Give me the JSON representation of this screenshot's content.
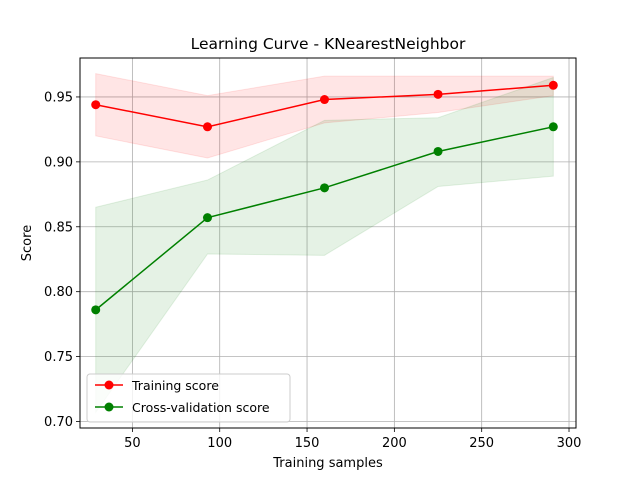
{
  "chart_data": {
    "type": "line",
    "title": "Learning Curve - KNearestNeighbor",
    "xlabel": "Training samples",
    "ylabel": "Score",
    "xlim": [
      20,
      304
    ],
    "ylim": [
      0.695,
      0.98
    ],
    "xticks": [
      50,
      100,
      150,
      200,
      250,
      300
    ],
    "yticks": [
      0.7,
      0.75,
      0.8,
      0.85,
      0.9,
      0.95
    ],
    "grid": true,
    "legend_position": "lower-left",
    "x": [
      29,
      93,
      160,
      225,
      291
    ],
    "series": [
      {
        "name": "Training score",
        "color": "#ff0000",
        "fill_color": "#ff0000",
        "values": [
          0.944,
          0.927,
          0.948,
          0.952,
          0.959
        ],
        "band_lower": [
          0.92,
          0.903,
          0.93,
          0.938,
          0.951
        ],
        "band_upper": [
          0.968,
          0.951,
          0.966,
          0.966,
          0.966
        ]
      },
      {
        "name": "Cross-validation score",
        "color": "#008000",
        "fill_color": "#008000",
        "values": [
          0.786,
          0.857,
          0.88,
          0.908,
          0.927
        ],
        "band_lower": [
          0.707,
          0.829,
          0.828,
          0.881,
          0.889
        ],
        "band_upper": [
          0.865,
          0.886,
          0.932,
          0.934,
          0.965
        ]
      }
    ]
  }
}
